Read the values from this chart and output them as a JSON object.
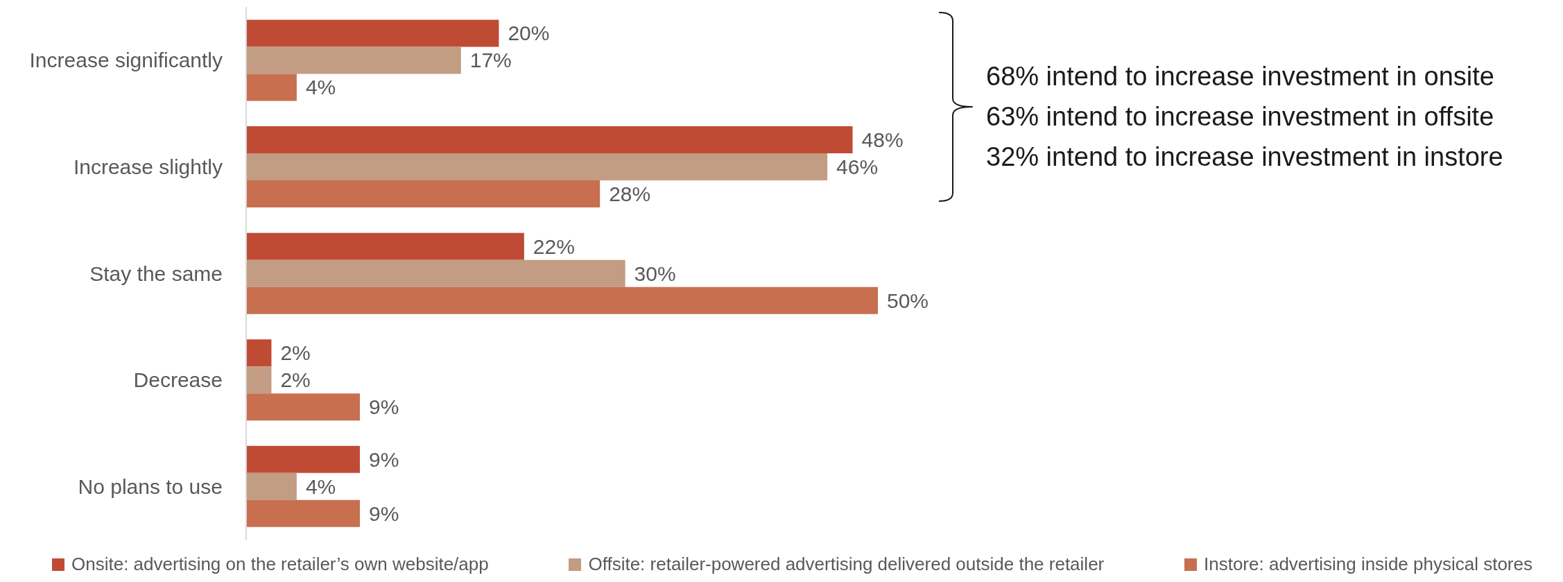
{
  "chart_data": {
    "type": "bar",
    "orientation": "horizontal",
    "tick_labels": "y",
    "legend": "bottom",
    "categories": [
      "Increase significantly",
      "Increase slightly",
      "Stay the same",
      "Decrease",
      "No plans to use"
    ],
    "series": [
      {
        "name": "Onsite: advertising on the retailer’s own website/app",
        "color": "#bf4b35",
        "values": [
          20,
          48,
          22,
          2,
          9
        ],
        "value_labels": [
          "20%",
          "48%",
          "22%",
          "2%",
          "9%"
        ]
      },
      {
        "name": "Offsite: retailer-powered advertising delivered outside the retailer",
        "color": "#c29c83",
        "values": [
          17,
          46,
          30,
          2,
          4
        ],
        "value_labels": [
          "17%",
          "46%",
          "30%",
          "2%",
          "4%"
        ]
      },
      {
        "name": "Instore: advertising inside physical stores",
        "color": "#c76f4f",
        "values": [
          4,
          28,
          50,
          9,
          9
        ],
        "value_labels": [
          "4%",
          "28%",
          "50%",
          "9%",
          "9%"
        ]
      }
    ],
    "annotations": [
      "68% intend to increase investment in onsite",
      "63% intend to increase investment in offsite",
      "32% intend to increase investment in instore"
    ]
  }
}
